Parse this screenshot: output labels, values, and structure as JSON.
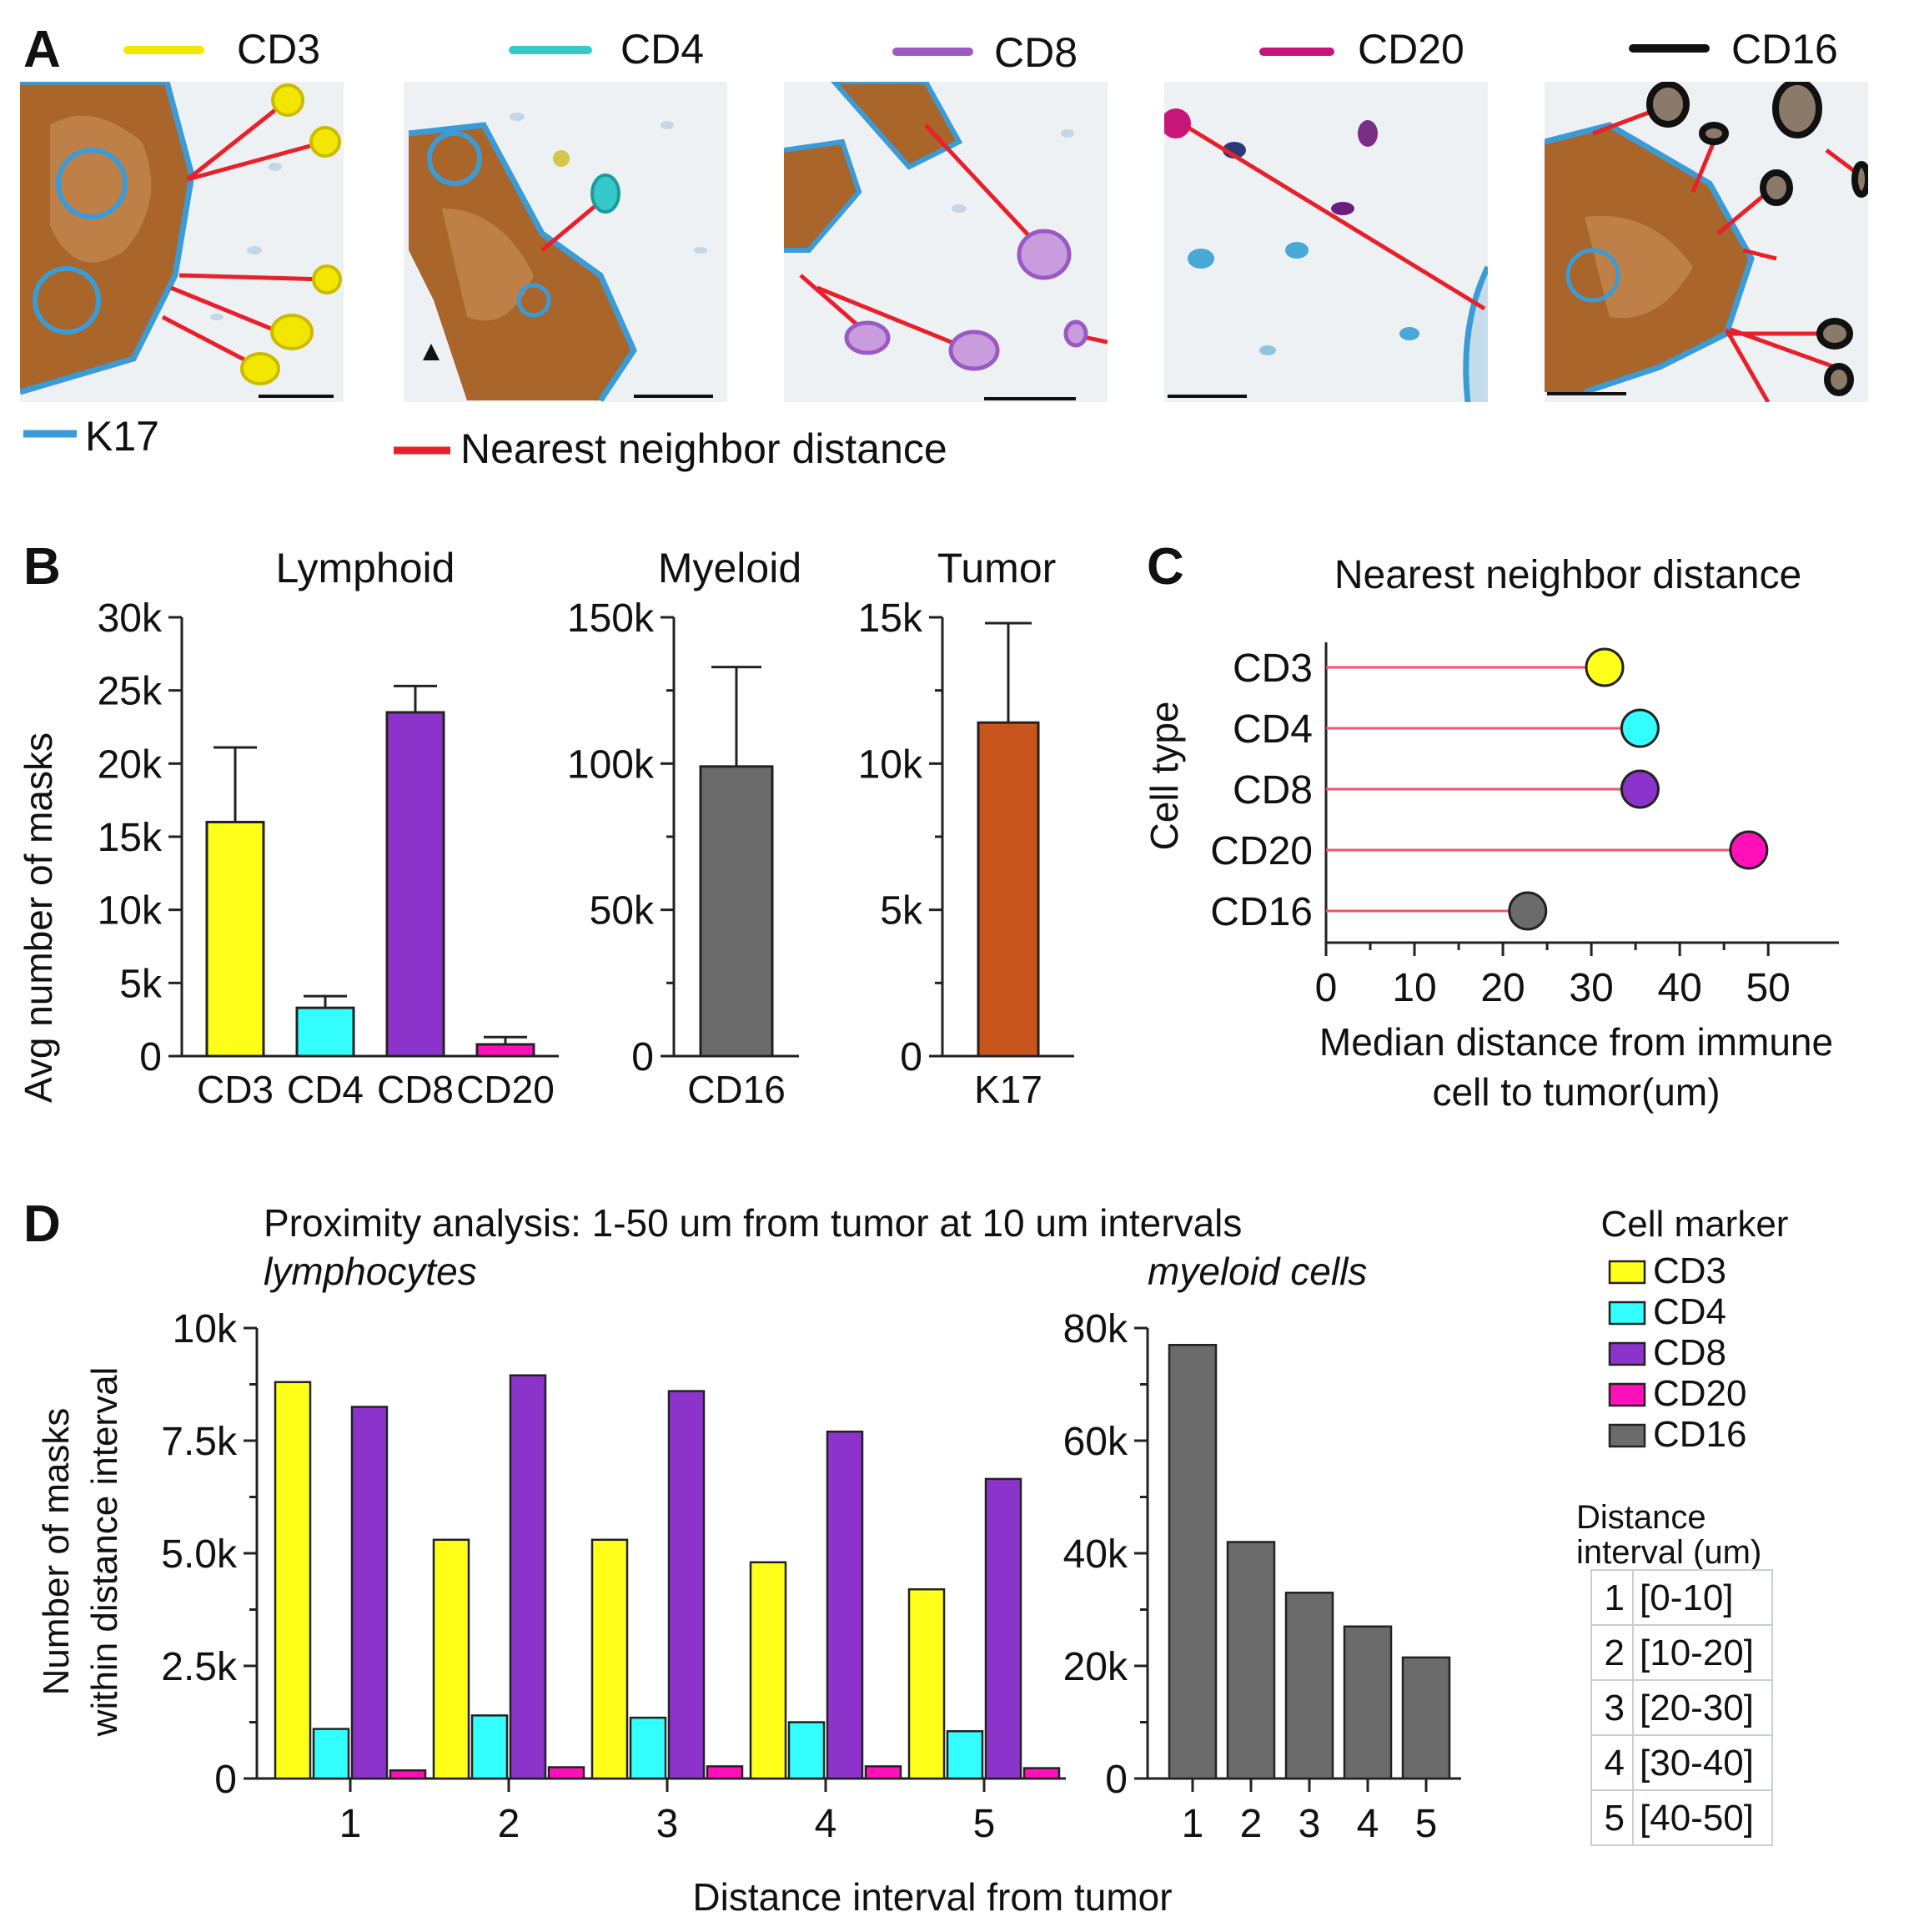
{
  "panels": {
    "A": "A",
    "B": "B",
    "C": "C",
    "D": "D"
  },
  "panel_a": {
    "tiles": [
      {
        "marker": "CD3",
        "color": "#f3e600"
      },
      {
        "marker": "CD4",
        "color": "#37c9c9"
      },
      {
        "marker": "CD8",
        "color": "#9a59c4"
      },
      {
        "marker": "CD20",
        "color": "#c7157a"
      },
      {
        "marker": "CD16",
        "color": "#111111"
      }
    ],
    "k17_label": "K17",
    "k17_color": "#3b9bd6",
    "nn_label": "Nearest neighbor distance",
    "nn_color": "#e8202a"
  },
  "chart_data": [
    {
      "id": "B1",
      "type": "bar",
      "title": "Lymphoid",
      "ylabel": "Avg number of masks",
      "xlabel": "",
      "categories": [
        "CD3",
        "CD4",
        "CD8",
        "CD20"
      ],
      "values": [
        16000,
        3300,
        23500,
        800
      ],
      "errors": [
        5100,
        800,
        1800,
        500
      ],
      "colors": [
        "#ffff1a",
        "#33ffff",
        "#8c33cc",
        "#ff10b8"
      ],
      "ylim": [
        0,
        30000
      ],
      "yticks": [
        0,
        5000,
        10000,
        15000,
        20000,
        25000,
        30000
      ],
      "ytick_labels": [
        "0",
        "5k",
        "10k",
        "15k",
        "20k",
        "25k",
        "30k"
      ]
    },
    {
      "id": "B2",
      "type": "bar",
      "title": "Myeloid",
      "xlabel": "",
      "ylabel": "",
      "categories": [
        "CD16"
      ],
      "values": [
        99000
      ],
      "errors": [
        34000
      ],
      "colors": [
        "#6b6b6b"
      ],
      "ylim": [
        0,
        150000
      ],
      "yticks": [
        0,
        50000,
        100000,
        150000
      ],
      "ytick_labels": [
        "0",
        "50k",
        "100k",
        "150k"
      ]
    },
    {
      "id": "B3",
      "type": "bar",
      "title": "Tumor",
      "xlabel": "",
      "ylabel": "",
      "categories": [
        "K17"
      ],
      "values": [
        11400
      ],
      "errors": [
        3400
      ],
      "colors": [
        "#c8561c"
      ],
      "ylim": [
        0,
        15000
      ],
      "yticks": [
        0,
        5000,
        10000,
        15000
      ],
      "ytick_labels": [
        "0",
        "5k",
        "10k",
        "15k"
      ]
    },
    {
      "id": "C",
      "type": "scatter",
      "title": "Nearest neighbor distance",
      "ylabel": "Cell type",
      "xlabel_lines": [
        "Median distance from immune",
        "cell to tumor(um)"
      ],
      "categories": [
        "CD3",
        "CD4",
        "CD8",
        "CD20",
        "CD16"
      ],
      "values": [
        31.5,
        35.5,
        35.5,
        47.8,
        22.8
      ],
      "colors": [
        "#ffff1a",
        "#33ffff",
        "#8c33cc",
        "#ff10b8",
        "#6b6b6b"
      ],
      "stem_color": "#f2546f",
      "xlim": [
        0,
        58
      ],
      "xticks": [
        0,
        10,
        20,
        30,
        40,
        50
      ]
    },
    {
      "id": "D1",
      "type": "bar",
      "title": "lymphocytes",
      "ylabel_lines": [
        "Number of masks",
        "within distance interval"
      ],
      "categories": [
        "1",
        "2",
        "3",
        "4",
        "5"
      ],
      "series": [
        {
          "name": "CD3",
          "color": "#ffff1a",
          "values": [
            8800,
            5300,
            5300,
            4800,
            4200
          ]
        },
        {
          "name": "CD4",
          "color": "#33ffff",
          "values": [
            1100,
            1400,
            1350,
            1250,
            1050
          ]
        },
        {
          "name": "CD8",
          "color": "#8c33cc",
          "values": [
            8250,
            8950,
            8600,
            7700,
            6650
          ]
        },
        {
          "name": "CD20",
          "color": "#ff10b8",
          "values": [
            180,
            250,
            270,
            270,
            230
          ]
        }
      ],
      "ylim": [
        0,
        10000
      ],
      "yticks": [
        0,
        2500,
        5000,
        7500,
        10000
      ],
      "ytick_labels": [
        "0",
        "2.5k",
        "5.0k",
        "7.5k",
        "10k"
      ]
    },
    {
      "id": "D2",
      "type": "bar",
      "title": "myeloid cells",
      "categories": [
        "1",
        "2",
        "3",
        "4",
        "5"
      ],
      "series": [
        {
          "name": "CD16",
          "color": "#6b6b6b",
          "values": [
            77000,
            42000,
            33000,
            27000,
            21500
          ]
        }
      ],
      "ylim": [
        0,
        80000
      ],
      "yticks": [
        0,
        20000,
        40000,
        60000,
        80000
      ],
      "ytick_labels": [
        "0",
        "20k",
        "40k",
        "60k",
        "80k"
      ]
    }
  ],
  "panel_d": {
    "title": "Proximity analysis: 1-50 um from tumor at 10 um intervals",
    "xlabel": "Distance interval from tumor",
    "legend_title": "Cell marker",
    "legend": [
      {
        "name": "CD3",
        "color": "#ffff1a"
      },
      {
        "name": "CD4",
        "color": "#33ffff"
      },
      {
        "name": "CD8",
        "color": "#8c33cc"
      },
      {
        "name": "CD20",
        "color": "#ff10b8"
      },
      {
        "name": "CD16",
        "color": "#6b6b6b"
      }
    ],
    "interval_title_lines": [
      "Distance",
      "interval (um)"
    ],
    "intervals": [
      {
        "n": "1",
        "range": "[0-10]"
      },
      {
        "n": "2",
        "range": "[10-20]"
      },
      {
        "n": "3",
        "range": "[20-30]"
      },
      {
        "n": "4",
        "range": "[30-40]"
      },
      {
        "n": "5",
        "range": "[40-50]"
      }
    ]
  }
}
